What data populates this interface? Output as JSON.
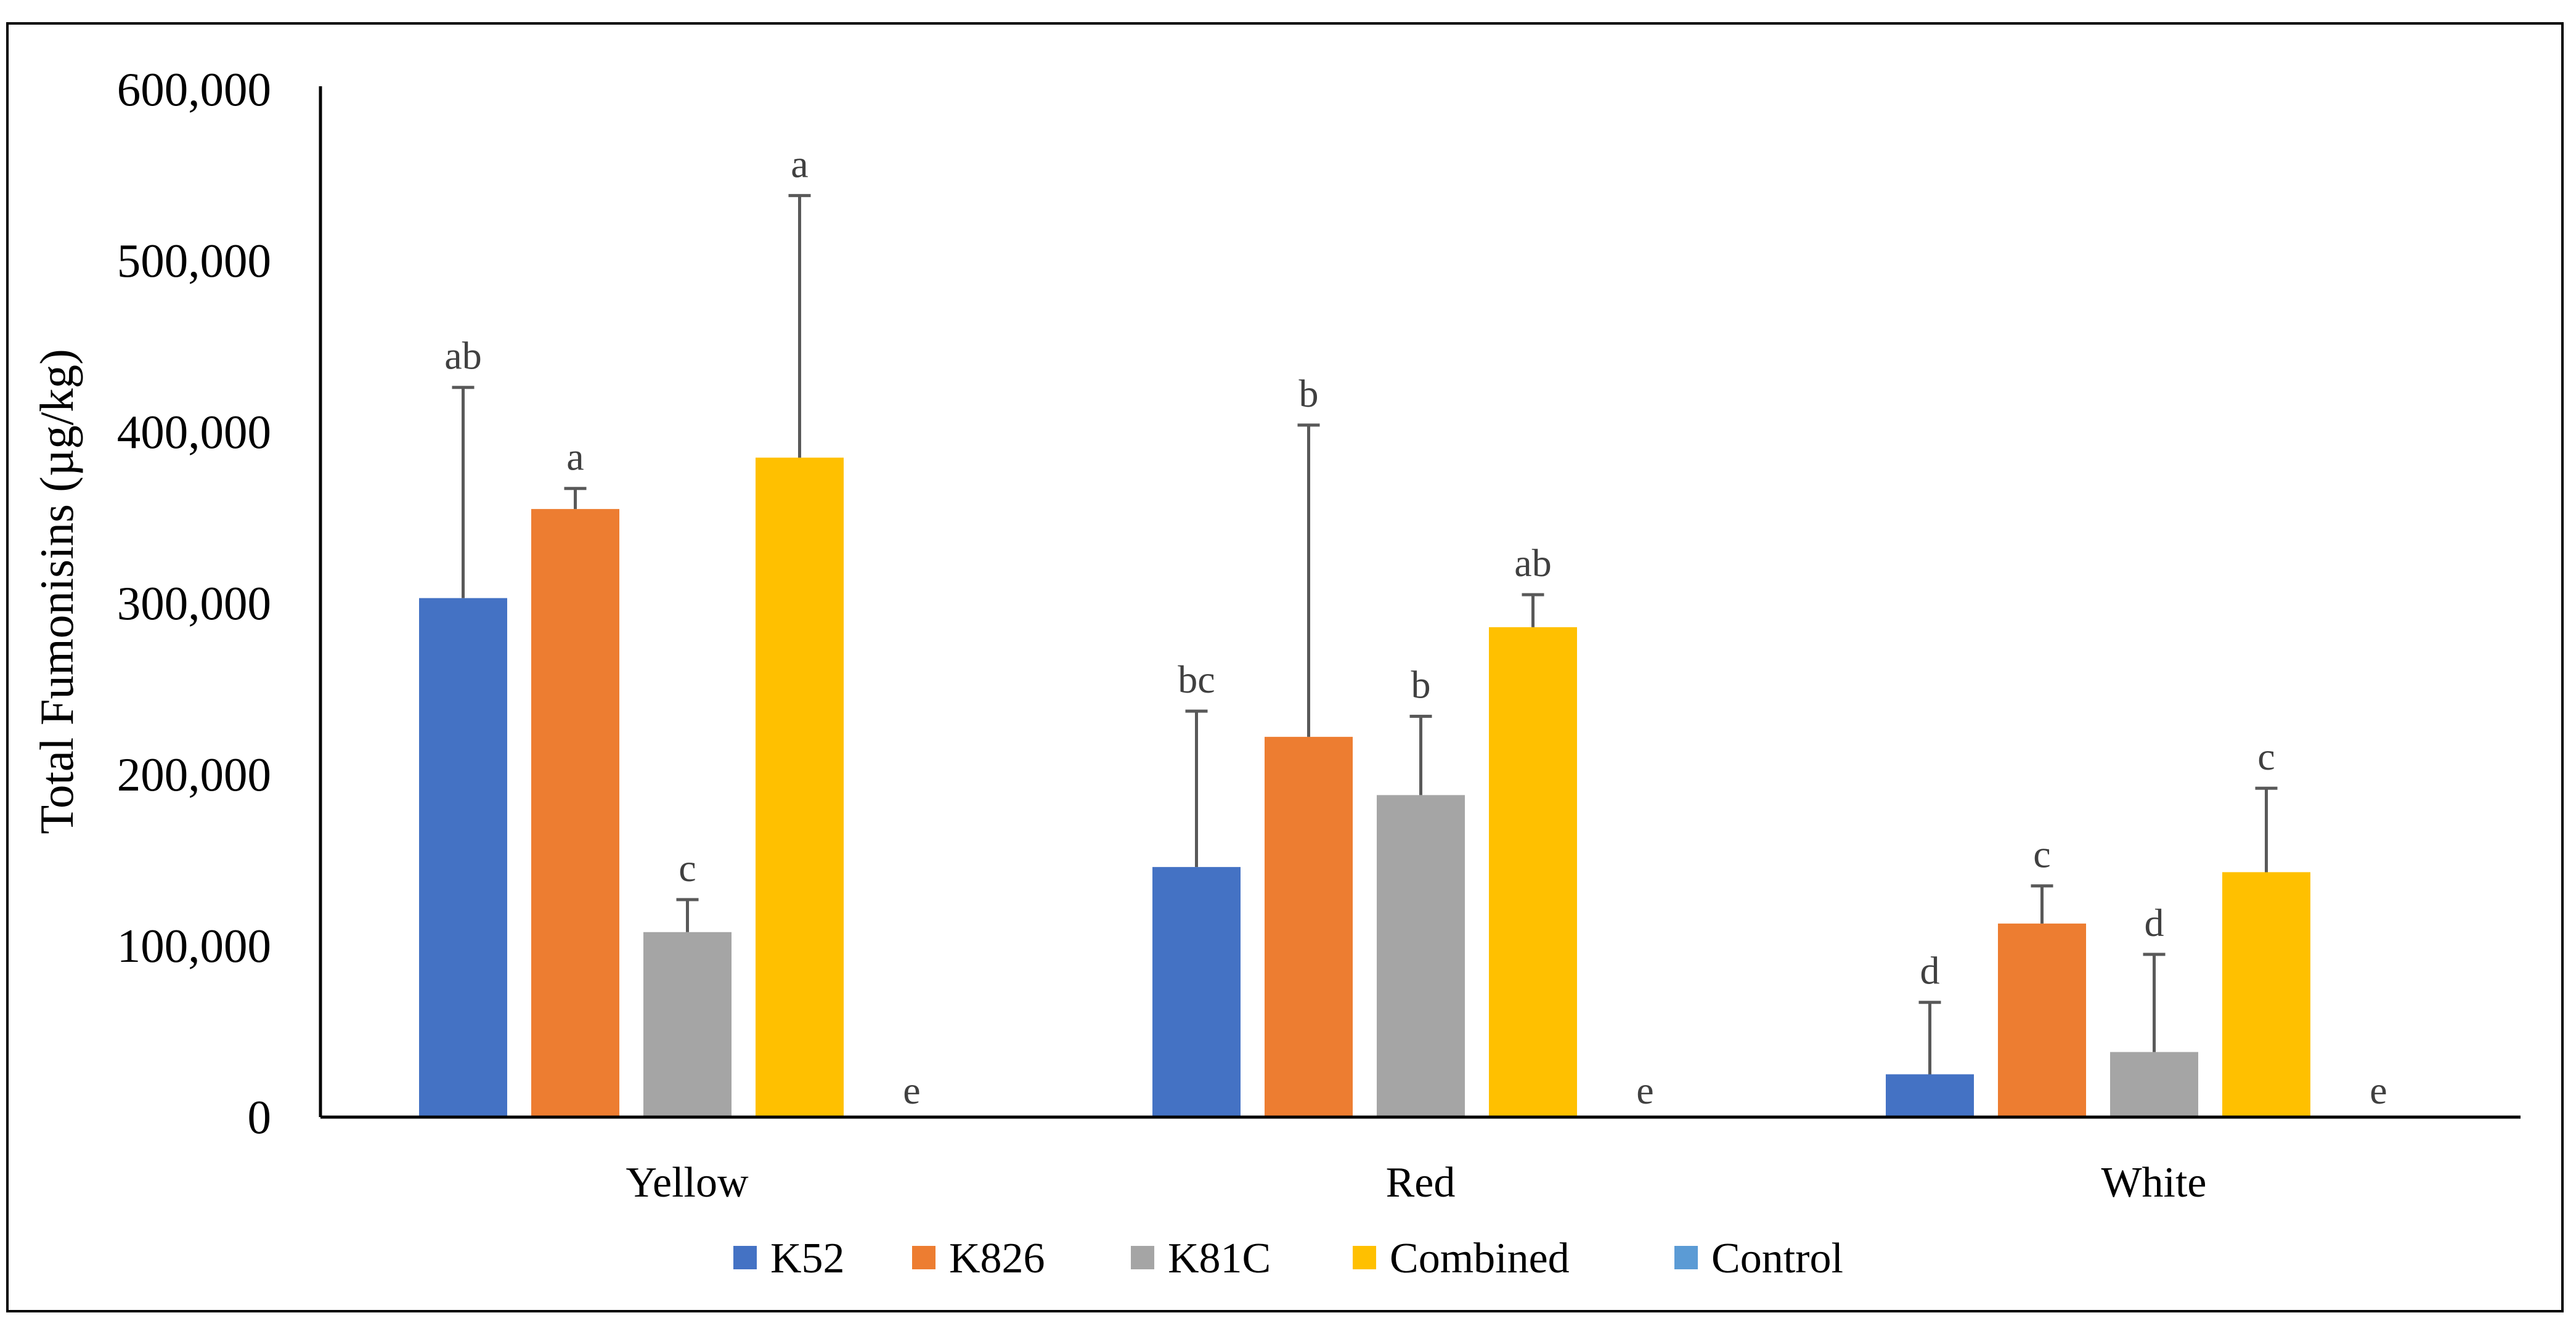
{
  "chart_data": {
    "type": "bar",
    "title": "",
    "xlabel": "",
    "ylabel": "Total Fumonisins (µg/kg)",
    "ylim": [
      0,
      600000
    ],
    "yticks": [
      0,
      100000,
      200000,
      300000,
      400000,
      500000,
      600000
    ],
    "ytick_labels": [
      "0",
      "100,000",
      "200,000",
      "300,000",
      "400,000",
      "500,000",
      "600,000"
    ],
    "categories": [
      "Yellow",
      "Red",
      "White"
    ],
    "legend_position": "bottom",
    "grid": false,
    "series": [
      {
        "name": "K52",
        "color": "#4472C4",
        "values": [
          303000,
          146000,
          25000
        ],
        "error_upper": [
          426000,
          237000,
          67000
        ],
        "letters": [
          "ab",
          "bc",
          "d"
        ]
      },
      {
        "name": "K826",
        "color": "#ED7D31",
        "values": [
          355000,
          222000,
          113000
        ],
        "error_upper": [
          367000,
          404000,
          135000
        ],
        "letters": [
          "a",
          "b",
          "c"
        ]
      },
      {
        "name": "K81C",
        "color": "#A5A5A5",
        "values": [
          108000,
          188000,
          38000
        ],
        "error_upper": [
          127000,
          234000,
          95000
        ],
        "letters": [
          "c",
          "b",
          "d"
        ]
      },
      {
        "name": "Combined",
        "color": "#FFC000",
        "values": [
          385000,
          286000,
          143000
        ],
        "error_upper": [
          538000,
          305000,
          192000
        ],
        "letters": [
          "a",
          "ab",
          "c"
        ]
      },
      {
        "name": "Control",
        "color": "#5B9BD5",
        "values": [
          0,
          0,
          0
        ],
        "error_upper": [
          0,
          0,
          0
        ],
        "letters": [
          "e",
          "e",
          "e"
        ]
      }
    ]
  }
}
